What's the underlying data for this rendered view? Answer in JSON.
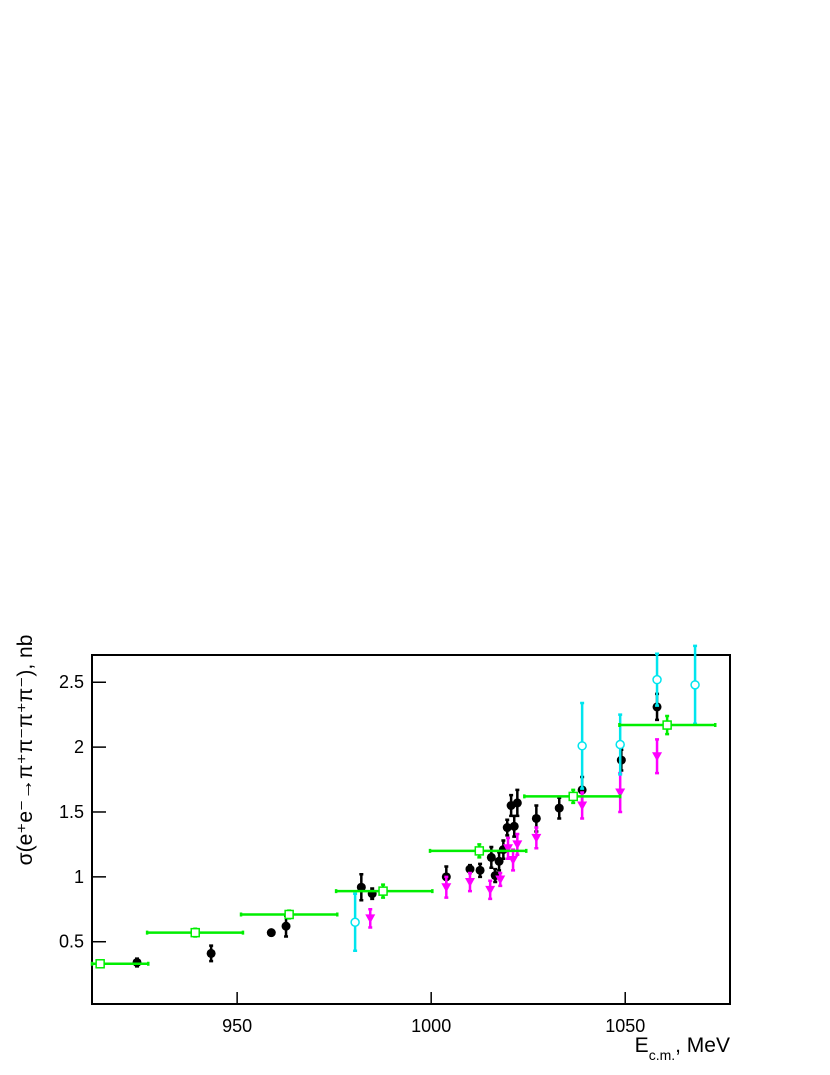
{
  "chart_data": {
    "type": "scatter",
    "y_label": "σ(e⁺e⁻→π⁺π⁻π⁺π⁻), nb",
    "x_label": [
      "E",
      "c.m.",
      ", MeV"
    ],
    "xlim": [
      912.6,
      1077
    ],
    "xticks": [
      950,
      1000,
      1050
    ],
    "ylim": [
      0.02,
      2.71
    ],
    "yticks": [
      0.5,
      1,
      1.5,
      2,
      2.5
    ],
    "grid": false,
    "series": [
      {
        "marker": "filled-circle",
        "color": "#000000",
        "x": [
          924.2,
          943.3,
          958.8,
          962.6,
          982,
          984.8,
          1003.9,
          1010,
          1012.6,
          1015.5,
          1016.5,
          1017.5,
          1018.6,
          1019.6,
          1020.6,
          1021.4,
          1022.2,
          1027.1,
          1033,
          1038.9,
          1049,
          1058.2
        ],
        "values": [
          0.34,
          0.41,
          0.57,
          0.62,
          0.92,
          0.87,
          1.0,
          1.06,
          1.05,
          1.15,
          1.01,
          1.12,
          1.21,
          1.38,
          1.55,
          1.39,
          1.57,
          1.45,
          1.53,
          1.67,
          1.9,
          2.31
        ],
        "errors": [
          0.03,
          0.06,
          0.01,
          0.08,
          0.1,
          0.04,
          0.08,
          0.03,
          0.05,
          0.08,
          0.05,
          0.07,
          0.07,
          0.06,
          0.08,
          0.08,
          0.1,
          0.1,
          0.08,
          0.1,
          0.08,
          0.1
        ]
      },
      {
        "marker": "triangle-down",
        "color": "#ff00ff",
        "x": [
          984.3,
          1003.9,
          1010,
          1015.2,
          1017.8,
          1019.8,
          1021.1,
          1022.2,
          1027.1,
          1038.9,
          1048.7,
          1058.2
        ],
        "values": [
          0.68,
          0.92,
          0.96,
          0.9,
          0.98,
          1.22,
          1.13,
          1.25,
          1.3,
          1.55,
          1.65,
          1.93
        ],
        "errors": [
          0.07,
          0.08,
          0.07,
          0.07,
          0.05,
          0.08,
          0.08,
          0.08,
          0.08,
          0.1,
          0.15,
          0.13
        ]
      },
      {
        "marker": "open-circle",
        "color": "#00e5ee",
        "x": [
          980.4,
          1038.9,
          1048.7,
          1058.2,
          1068
        ],
        "values": [
          0.65,
          2.01,
          2.02,
          2.52,
          2.48
        ],
        "errors": [
          0.22,
          0.33,
          0.23,
          0.2,
          0.3
        ]
      },
      {
        "marker": "open-square",
        "color": "#00ee00",
        "x": [
          914.7,
          939.2,
          963.4,
          987.6,
          1012.4,
          1036.6,
          1060.8
        ],
        "x_low": [
          912.6,
          926.8,
          951,
          975.5,
          999.7,
          1024,
          1048.5
        ],
        "x_high": [
          927.1,
          951.5,
          975.8,
          1000.3,
          1024.5,
          1048.7,
          1073.2
        ],
        "values": [
          0.33,
          0.57,
          0.71,
          0.89,
          1.2,
          1.62,
          2.17
        ],
        "errors": [
          0.02,
          0.03,
          0.03,
          0.05,
          0.05,
          0.05,
          0.07
        ]
      }
    ]
  }
}
